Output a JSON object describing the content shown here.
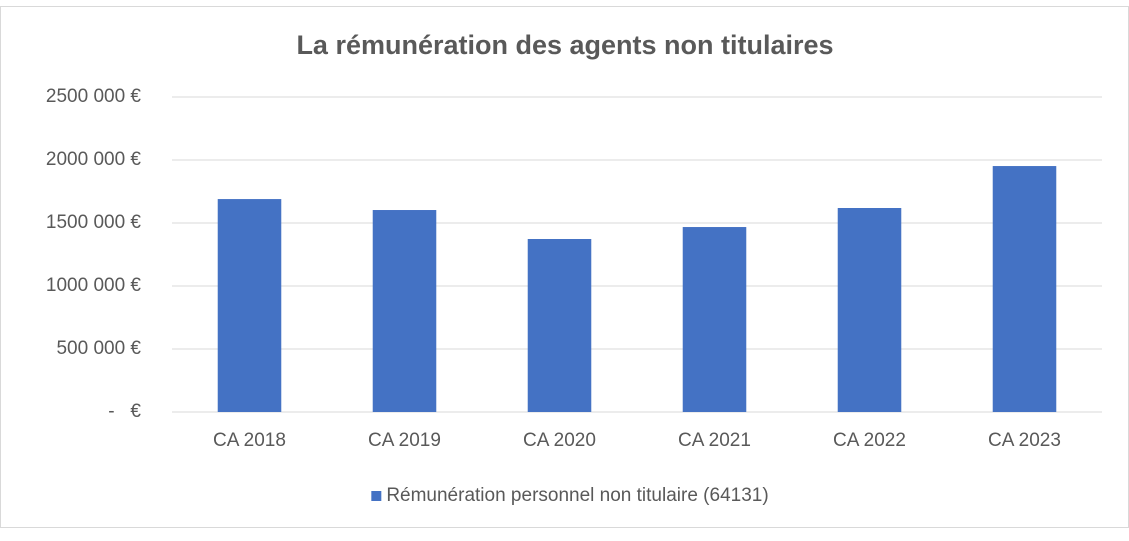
{
  "chart_data": {
    "type": "bar",
    "title": "La rémunération des agents non titulaires",
    "categories": [
      "CA 2018",
      "CA 2019",
      "CA 2020",
      "CA 2021",
      "CA 2022",
      "CA 2023"
    ],
    "series": [
      {
        "name": "Rémunération personnel non titulaire (64131)",
        "color": "#4472c4",
        "values": [
          1690000,
          1603000,
          1373000,
          1468000,
          1619000,
          1952000
        ]
      }
    ],
    "ylim": [
      0,
      2500000
    ],
    "yticks": [
      {
        "value": 0,
        "label": "-   €"
      },
      {
        "value": 500000,
        "label": "500 000 €"
      },
      {
        "value": 1000000,
        "label": "1000 000 €"
      },
      {
        "value": 1500000,
        "label": "1500 000 €"
      },
      {
        "value": 2000000,
        "label": "2000 000 €"
      },
      {
        "value": 2500000,
        "label": "2500 000 €"
      }
    ],
    "grid": true,
    "legend": "bottom"
  }
}
